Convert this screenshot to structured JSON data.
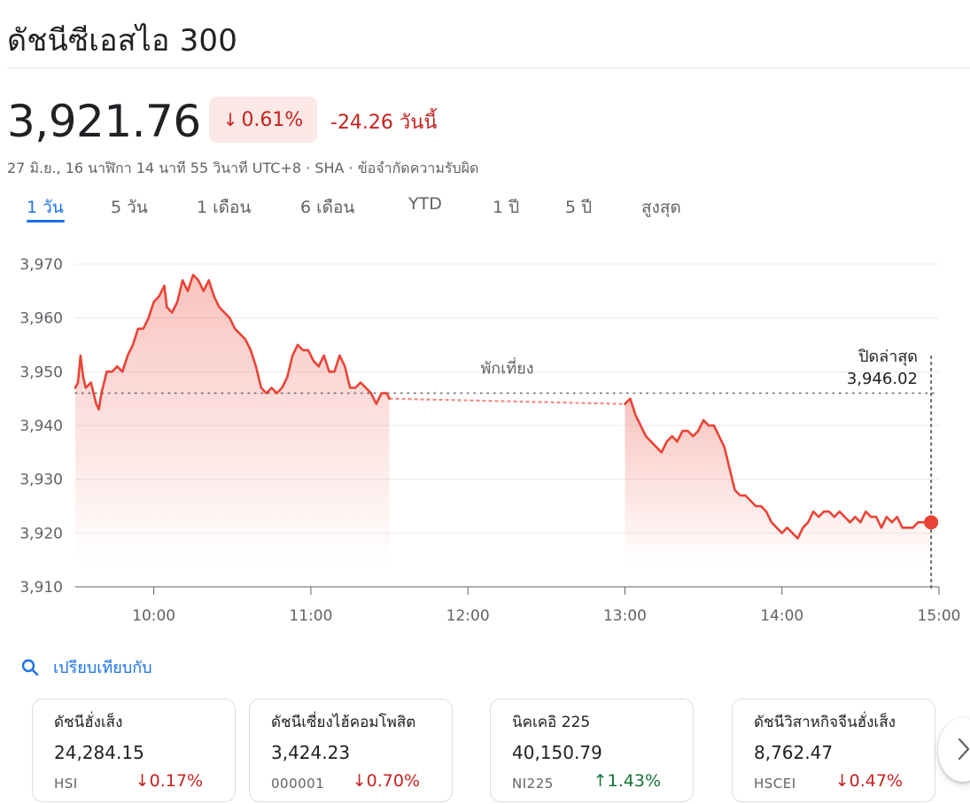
{
  "title": "ดัชนีซีเอสไอ 300",
  "quote": {
    "price": "3,921.76",
    "percent_change": "0.61%",
    "abs_change": "-24.26",
    "today_label": "วันนี้",
    "meta": "27 มิ.ย., 16 นาฬิกา 14 นาที 55 วินาที UTC+8 · SHA · ข้อจำกัดความรับผิด"
  },
  "tabs": [
    {
      "label": "1 วัน",
      "active": true
    },
    {
      "label": "5 วัน"
    },
    {
      "label": "1 เดือน"
    },
    {
      "label": "6 เดือน"
    },
    {
      "label": "YTD"
    },
    {
      "label": "1 ปี"
    },
    {
      "label": "5 ปี"
    },
    {
      "label": "สูงสุด"
    }
  ],
  "colors": {
    "down": "#c5221f",
    "up": "#137333",
    "line": "#ea4335",
    "accent": "#1a73e8"
  },
  "chart_data": {
    "type": "line",
    "ylim": [
      3910,
      3970
    ],
    "y_ticks": [
      "3,970",
      "3,960",
      "3,950",
      "3,940",
      "3,930",
      "3,920",
      "3,910"
    ],
    "y_tick_values": [
      3970,
      3960,
      3950,
      3940,
      3930,
      3920,
      3910
    ],
    "x_ticks": [
      "10:00",
      "11:00",
      "12:00",
      "13:00",
      "14:00",
      "15:00"
    ],
    "x_tick_values": [
      "10:00",
      "11:00",
      "12:00",
      "13:00",
      "14:00",
      "15:00"
    ],
    "xlim": [
      "09:30",
      "15:00"
    ],
    "lunch_label": "พักเที่ยง",
    "previous_close_label": "ปิดล่าสุด",
    "previous_close_value": "3,946.02",
    "previous_close": 3946.02,
    "series": [
      {
        "values": [
          [
            "09:30",
            3947
          ],
          [
            "09:31",
            3948
          ],
          [
            "09:32",
            3953
          ],
          [
            "09:33",
            3949
          ],
          [
            "09:34",
            3947
          ],
          [
            "09:36",
            3948
          ],
          [
            "09:38",
            3944
          ],
          [
            "09:39",
            3943
          ],
          [
            "09:40",
            3946
          ],
          [
            "09:42",
            3950
          ],
          [
            "09:44",
            3950
          ],
          [
            "09:46",
            3951
          ],
          [
            "09:48",
            3950
          ],
          [
            "09:50",
            3953
          ],
          [
            "09:52",
            3955
          ],
          [
            "09:54",
            3958
          ],
          [
            "09:56",
            3958
          ],
          [
            "09:58",
            3960
          ],
          [
            "10:00",
            3963
          ],
          [
            "10:02",
            3964
          ],
          [
            "10:04",
            3966
          ],
          [
            "10:05",
            3962
          ],
          [
            "10:07",
            3961
          ],
          [
            "10:09",
            3963
          ],
          [
            "10:11",
            3967
          ],
          [
            "10:13",
            3965
          ],
          [
            "10:15",
            3968
          ],
          [
            "10:17",
            3967
          ],
          [
            "10:19",
            3965
          ],
          [
            "10:21",
            3967
          ],
          [
            "10:23",
            3964
          ],
          [
            "10:25",
            3962
          ],
          [
            "10:27",
            3961
          ],
          [
            "10:29",
            3960
          ],
          [
            "10:31",
            3958
          ],
          [
            "10:33",
            3957
          ],
          [
            "10:35",
            3956
          ],
          [
            "10:37",
            3954
          ],
          [
            "10:39",
            3951
          ],
          [
            "10:41",
            3947
          ],
          [
            "10:43",
            3946
          ],
          [
            "10:45",
            3947
          ],
          [
            "10:47",
            3946
          ],
          [
            "10:49",
            3947
          ],
          [
            "10:51",
            3949
          ],
          [
            "10:53",
            3953
          ],
          [
            "10:55",
            3955
          ],
          [
            "10:57",
            3954
          ],
          [
            "10:59",
            3954
          ],
          [
            "11:01",
            3952
          ],
          [
            "11:03",
            3951
          ],
          [
            "11:05",
            3953
          ],
          [
            "11:07",
            3950
          ],
          [
            "11:09",
            3950
          ],
          [
            "11:11",
            3953
          ],
          [
            "11:13",
            3951
          ],
          [
            "11:15",
            3947
          ],
          [
            "11:17",
            3947
          ],
          [
            "11:19",
            3948
          ],
          [
            "11:21",
            3947
          ],
          [
            "11:23",
            3946
          ],
          [
            "11:25",
            3944
          ],
          [
            "11:27",
            3946
          ],
          [
            "11:29",
            3946
          ],
          [
            "11:30",
            3945
          ]
        ]
      },
      {
        "values": [
          [
            "13:00",
            3944
          ],
          [
            "13:02",
            3945
          ],
          [
            "13:04",
            3942
          ],
          [
            "13:06",
            3940
          ],
          [
            "13:08",
            3938
          ],
          [
            "13:10",
            3937
          ],
          [
            "13:12",
            3936
          ],
          [
            "13:14",
            3935
          ],
          [
            "13:16",
            3937
          ],
          [
            "13:18",
            3938
          ],
          [
            "13:20",
            3937
          ],
          [
            "13:22",
            3939
          ],
          [
            "13:24",
            3939
          ],
          [
            "13:26",
            3938
          ],
          [
            "13:28",
            3939
          ],
          [
            "13:30",
            3941
          ],
          [
            "13:32",
            3940
          ],
          [
            "13:34",
            3940
          ],
          [
            "13:36",
            3938
          ],
          [
            "13:38",
            3936
          ],
          [
            "13:40",
            3932
          ],
          [
            "13:42",
            3928
          ],
          [
            "13:44",
            3927
          ],
          [
            "13:46",
            3927
          ],
          [
            "13:48",
            3926
          ],
          [
            "13:50",
            3925
          ],
          [
            "13:52",
            3925
          ],
          [
            "13:54",
            3924
          ],
          [
            "13:56",
            3922
          ],
          [
            "13:58",
            3921
          ],
          [
            "14:00",
            3920
          ],
          [
            "14:02",
            3921
          ],
          [
            "14:04",
            3920
          ],
          [
            "14:06",
            3919
          ],
          [
            "14:08",
            3921
          ],
          [
            "14:10",
            3922
          ],
          [
            "14:12",
            3924
          ],
          [
            "14:14",
            3923
          ],
          [
            "14:16",
            3924
          ],
          [
            "14:18",
            3924
          ],
          [
            "14:20",
            3923
          ],
          [
            "14:22",
            3924
          ],
          [
            "14:24",
            3923
          ],
          [
            "14:26",
            3922
          ],
          [
            "14:28",
            3923
          ],
          [
            "14:30",
            3922
          ],
          [
            "14:32",
            3924
          ],
          [
            "14:34",
            3923
          ],
          [
            "14:36",
            3923
          ],
          [
            "14:38",
            3921
          ],
          [
            "14:40",
            3923
          ],
          [
            "14:42",
            3922
          ],
          [
            "14:44",
            3923
          ],
          [
            "14:46",
            3921
          ],
          [
            "14:48",
            3921
          ],
          [
            "14:50",
            3921
          ],
          [
            "14:52",
            3922
          ],
          [
            "14:54",
            3922
          ],
          [
            "14:56",
            3922
          ],
          [
            "14:57",
            3922
          ]
        ]
      }
    ]
  },
  "compare": {
    "label": "เปรียบเทียบกับ",
    "icon": "search-icon",
    "cards": [
      {
        "name": "ดัชนีฮั่งเส็ง",
        "value": "24,284.15",
        "ticker": "HSI",
        "change": "0.17%",
        "direction": "down"
      },
      {
        "name": "ดัชนีเซี่ยงไฮ้คอมโพสิต",
        "value": "3,424.23",
        "ticker": "000001",
        "change": "0.70%",
        "direction": "down"
      },
      {
        "name": "นิคเคอิ 225",
        "value": "40,150.79",
        "ticker": "NI225",
        "change": "1.43%",
        "direction": "up"
      },
      {
        "name": "ดัชนีวิสาหกิจจีนฮั่งเส็ง",
        "value": "8,762.47",
        "ticker": "HSCEI",
        "change": "0.47%",
        "direction": "down"
      }
    ],
    "next_icon": "chevron-right-icon"
  }
}
